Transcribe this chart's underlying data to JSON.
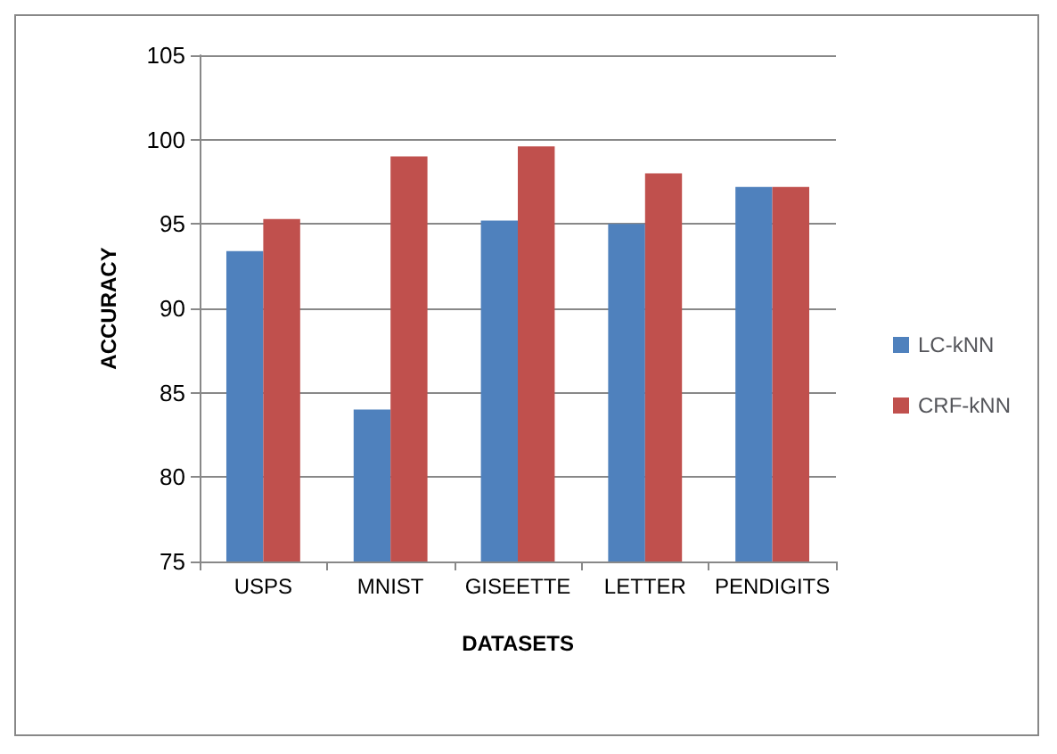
{
  "chart_data": {
    "type": "bar",
    "xlabel": "DATASETS",
    "ylabel": "ACCURACY",
    "categories": [
      "USPS",
      "MNIST",
      "GISEETTE",
      "LETTER",
      "PENDIGITS"
    ],
    "series": [
      {
        "name": "LC-kNN",
        "color": "#4f81bd",
        "values": [
          93.4,
          84.0,
          95.2,
          95.0,
          97.2
        ]
      },
      {
        "name": "CRF-kNN",
        "color": "#c0504d",
        "values": [
          95.3,
          99.0,
          99.6,
          98.0,
          97.2
        ]
      }
    ],
    "ylim": [
      75,
      105
    ],
    "yticks": [
      75,
      80,
      85,
      90,
      95,
      100,
      105
    ],
    "grid": "y",
    "legend": "right"
  }
}
